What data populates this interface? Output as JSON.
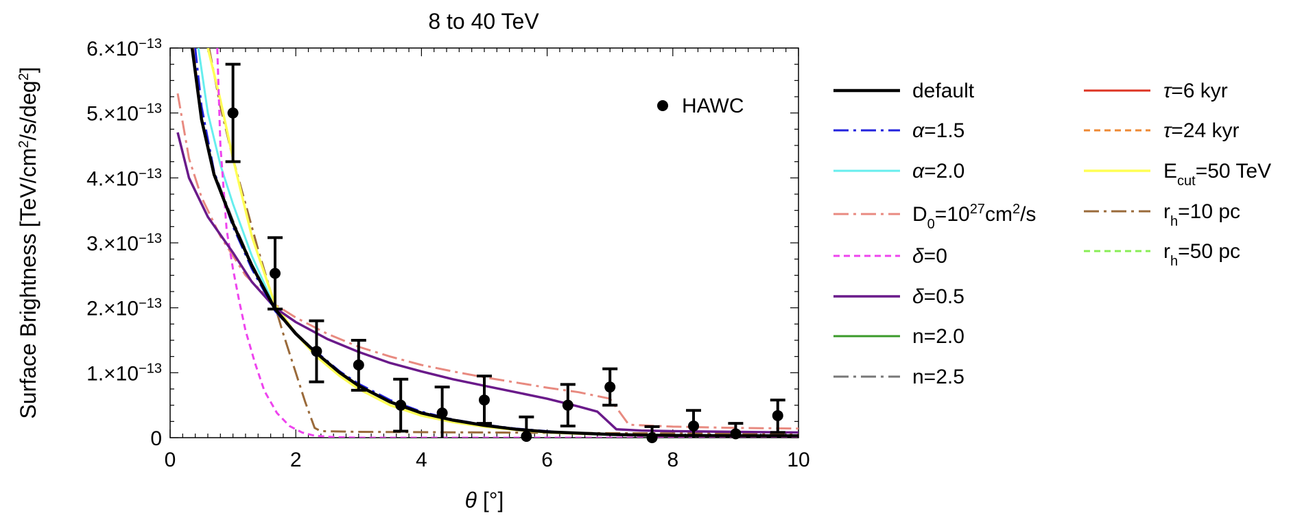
{
  "chart_data": {
    "type": "line",
    "title": "8 to 40 TeV",
    "xlabel": "θ [°]",
    "ylabel": "Surface Brightness [TeV/cm²/s/deg²]",
    "xlim": [
      0,
      10
    ],
    "ylim": [
      0,
      6e-13
    ],
    "x_ticks": [
      {
        "value": 0,
        "label": "0"
      },
      {
        "value": 2,
        "label": "2"
      },
      {
        "value": 4,
        "label": "4"
      },
      {
        "value": 6,
        "label": "6"
      },
      {
        "value": 8,
        "label": "8"
      },
      {
        "value": 10,
        "label": "10"
      }
    ],
    "y_ticks": [
      {
        "value": 0,
        "mant": "0",
        "exp": ""
      },
      {
        "value": 1e-13,
        "mant": "1.×10",
        "exp": "−13"
      },
      {
        "value": 2e-13,
        "mant": "2.×10",
        "exp": "−13"
      },
      {
        "value": 3e-13,
        "mant": "3.×10",
        "exp": "−13"
      },
      {
        "value": 4e-13,
        "mant": "4.×10",
        "exp": "−13"
      },
      {
        "value": 5e-13,
        "mant": "5.×10",
        "exp": "−13"
      },
      {
        "value": 6e-13,
        "mant": "6.×10",
        "exp": "−13"
      }
    ],
    "data_points": {
      "name": "HAWC",
      "points": [
        {
          "x": 1.0,
          "y": 5e-13,
          "lo": 4.25e-13,
          "hi": 5.75e-13
        },
        {
          "x": 1.67,
          "y": 2.53e-13,
          "lo": 1.98e-13,
          "hi": 3.08e-13
        },
        {
          "x": 2.33,
          "y": 1.33e-13,
          "lo": 8.6e-14,
          "hi": 1.8e-13
        },
        {
          "x": 3.0,
          "y": 1.12e-13,
          "lo": 7.3e-14,
          "hi": 1.5e-13
        },
        {
          "x": 3.67,
          "y": 5e-14,
          "lo": 1e-14,
          "hi": 9e-14
        },
        {
          "x": 4.33,
          "y": 3.8e-14,
          "lo": 0.0,
          "hi": 7.8e-14
        },
        {
          "x": 5.0,
          "y": 5.8e-14,
          "lo": 2.2e-14,
          "hi": 9.5e-14
        },
        {
          "x": 5.67,
          "y": 2e-15,
          "lo": 0.0,
          "hi": 3.2e-14
        },
        {
          "x": 6.33,
          "y": 5e-14,
          "lo": 1.8e-14,
          "hi": 8.2e-14
        },
        {
          "x": 7.0,
          "y": 7.8e-14,
          "lo": 5e-14,
          "hi": 1.06e-13
        },
        {
          "x": 7.67,
          "y": 0.0,
          "lo": 0.0,
          "hi": 1.7e-14
        },
        {
          "x": 8.33,
          "y": 1.8e-14,
          "lo": 0.0,
          "hi": 4.2e-14
        },
        {
          "x": 9.0,
          "y": 6e-15,
          "lo": 0.0,
          "hi": 2.2e-14
        },
        {
          "x": 9.67,
          "y": 3.4e-14,
          "lo": 8e-15,
          "hi": 5.8e-14
        }
      ]
    },
    "series": [
      {
        "name": "default",
        "color": "#000000",
        "dash": "solid",
        "width": 4.5,
        "x": [
          0.35,
          0.5,
          0.7,
          1.0,
          1.3,
          1.67,
          2.0,
          2.33,
          2.7,
          3.0,
          3.5,
          4.0,
          4.5,
          5.0,
          5.5,
          6.0,
          6.5,
          7.0,
          7.5,
          8.0,
          9.0,
          10.0
        ],
        "y": [
          6e-13,
          4.9e-13,
          4.05e-13,
          3.3e-13,
          2.65e-13,
          1.98e-13,
          1.6e-13,
          1.3e-13,
          1e-13,
          8e-14,
          5.5e-14,
          3.8e-14,
          2.7e-14,
          1.9e-14,
          1.3e-14,
          9e-15,
          7e-15,
          5e-15,
          4e-15,
          3.5e-15,
          3e-15,
          3e-15
        ]
      },
      {
        "name": "α=1.5",
        "color": "#2222dd",
        "dash": "dashdot",
        "width": 3,
        "x": [
          0.4,
          0.5,
          0.7,
          1.0,
          1.3,
          1.67,
          2.0,
          2.33,
          2.7,
          3.0,
          3.5,
          4.0,
          4.5,
          5.0,
          5.5,
          6.0,
          6.5,
          7.0,
          7.5,
          8.0,
          9.0,
          10.0
        ],
        "y": [
          6e-13,
          5.1e-13,
          4.1e-13,
          3.25e-13,
          2.6e-13,
          1.95e-13,
          1.6e-13,
          1.32e-13,
          1.02e-13,
          8.3e-14,
          5.8e-14,
          4e-14,
          2.8e-14,
          2e-14,
          1.4e-14,
          1e-14,
          7e-15,
          5e-15,
          4e-15,
          3.5e-15,
          3e-15,
          3e-15
        ]
      },
      {
        "name": "α=2.0",
        "color": "#66eeee",
        "dash": "solid",
        "width": 3,
        "x": [
          0.45,
          0.6,
          0.8,
          1.0,
          1.3,
          1.67,
          2.0,
          2.33,
          2.7,
          3.0,
          3.5,
          4.0,
          4.5,
          5.0,
          5.5,
          6.0,
          6.5,
          7.0,
          7.5,
          8.0,
          9.0,
          10.0
        ],
        "y": [
          6e-13,
          5e-13,
          4.2e-13,
          3.6e-13,
          2.8e-13,
          2e-13,
          1.6e-13,
          1.3e-13,
          1e-13,
          8e-14,
          5.5e-14,
          3.8e-14,
          2.7e-14,
          1.9e-14,
          1.3e-14,
          9e-15,
          7e-15,
          5e-15,
          4e-15,
          3.5e-15,
          3e-15,
          3e-15
        ]
      },
      {
        "name": "D₀=10²⁷cm²/s",
        "color": "#e88a80",
        "dash": "dashdot",
        "width": 3,
        "x": [
          0.12,
          0.3,
          0.5,
          0.8,
          1.2,
          1.67,
          2.0,
          2.5,
          3.0,
          3.5,
          4.0,
          4.5,
          5.0,
          5.5,
          6.0,
          6.5,
          7.0,
          7.3,
          8.0,
          9.0,
          10.0
        ],
        "y": [
          5.3e-13,
          4.3e-13,
          3.7e-13,
          3.1e-13,
          2.5e-13,
          2.05e-13,
          1.85e-13,
          1.6e-13,
          1.4e-13,
          1.25e-13,
          1.12e-13,
          1.02e-13,
          9.3e-14,
          8.5e-14,
          7.7e-14,
          7e-14,
          6e-14,
          2e-14,
          1.7e-14,
          1.5e-14,
          1.4e-14
        ]
      },
      {
        "name": "δ=0",
        "color": "#ee44ee",
        "dash": "dashed",
        "width": 3,
        "x": [
          0.75,
          0.8,
          0.9,
          1.0,
          1.1,
          1.2,
          1.35,
          1.5,
          1.7,
          1.9,
          2.1,
          2.3,
          2.6,
          3.0,
          4.0,
          6.0,
          8.0,
          10.0
        ],
        "y": [
          6e-13,
          4.5e-13,
          3.2e-13,
          2.6e-13,
          2.1e-13,
          1.65e-13,
          1.15e-13,
          7.2e-14,
          3.8e-14,
          1.8e-14,
          8e-15,
          3e-15,
          1e-15,
          0.0,
          0.0,
          0.0,
          0.0,
          0.0
        ]
      },
      {
        "name": "δ=0.5",
        "color": "#6a1a8a",
        "dash": "solid",
        "width": 3.5,
        "x": [
          0.12,
          0.3,
          0.6,
          1.0,
          1.3,
          1.67,
          2.0,
          2.5,
          3.0,
          3.5,
          4.0,
          4.5,
          5.0,
          5.5,
          6.0,
          6.5,
          6.8,
          7.1,
          7.5,
          8.0,
          9.0,
          10.0
        ],
        "y": [
          4.7e-13,
          4e-13,
          3.4e-13,
          2.85e-13,
          2.4e-13,
          2e-13,
          1.78e-13,
          1.52e-13,
          1.32e-13,
          1.15e-13,
          1.02e-13,
          9e-14,
          8e-14,
          7e-14,
          6e-14,
          4.8e-14,
          4e-14,
          1.3e-14,
          1.1e-14,
          1e-14,
          9e-15,
          8e-15
        ]
      },
      {
        "name": "n=2.0",
        "color": "#3a9a2a",
        "dash": "solid",
        "width": 2.5,
        "x": [
          0.35,
          0.5,
          0.7,
          1.0,
          1.3,
          1.67,
          2.0,
          2.33,
          2.7,
          3.0,
          3.5,
          4.0,
          4.5,
          5.0,
          5.5,
          6.0,
          6.5,
          7.0,
          8.0,
          10.0
        ],
        "y": [
          6e-13,
          4.9e-13,
          4.05e-13,
          3.3e-13,
          2.65e-13,
          1.98e-13,
          1.6e-13,
          1.3e-13,
          1e-13,
          8e-14,
          5.5e-14,
          3.8e-14,
          2.7e-14,
          1.9e-14,
          1.3e-14,
          9e-15,
          7e-15,
          5e-15,
          3.5e-15,
          3e-15
        ]
      },
      {
        "name": "n=2.5",
        "color": "#777777",
        "dash": "dashdot",
        "width": 2.5,
        "x": [
          0.38,
          0.5,
          0.7,
          1.0,
          1.3,
          1.67,
          2.0,
          2.33,
          2.7,
          3.0,
          3.5,
          4.0,
          4.5,
          5.0,
          5.5,
          6.0,
          6.5,
          7.0,
          8.0,
          10.0
        ],
        "y": [
          6e-13,
          5e-13,
          4.1e-13,
          3.35e-13,
          2.68e-13,
          2e-13,
          1.62e-13,
          1.31e-13,
          1.01e-13,
          8.1e-14,
          5.6e-14,
          3.9e-14,
          2.7e-14,
          1.9e-14,
          1.3e-14,
          9e-15,
          7e-15,
          5e-15,
          3.5e-15,
          3e-15
        ]
      },
      {
        "name": "τ=6 kyr",
        "color": "#dd3322",
        "dash": "solid",
        "width": 2.5,
        "x": [
          0.36,
          0.5,
          0.7,
          1.0,
          1.3,
          1.67,
          2.0,
          2.33,
          2.7,
          3.0,
          3.5,
          4.0,
          4.5,
          5.0,
          5.5,
          6.0,
          6.5,
          7.0,
          8.0,
          10.0
        ],
        "y": [
          6e-13,
          4.92e-13,
          4.06e-13,
          3.31e-13,
          2.66e-13,
          1.99e-13,
          1.61e-13,
          1.3e-13,
          1e-13,
          8e-14,
          5.5e-14,
          3.8e-14,
          2.7e-14,
          1.9e-14,
          1.3e-14,
          9e-15,
          7e-15,
          5e-15,
          3.5e-15,
          3e-15
        ]
      },
      {
        "name": "τ=24 kyr",
        "color": "#ee8833",
        "dash": "dashed",
        "width": 2.5,
        "x": [
          0.37,
          0.5,
          0.7,
          1.0,
          1.3,
          1.67,
          2.0,
          2.33,
          2.7,
          3.0,
          3.5,
          4.0,
          4.5,
          5.0,
          5.5,
          6.0,
          6.5,
          7.0,
          8.0,
          10.0
        ],
        "y": [
          6e-13,
          4.95e-13,
          4.08e-13,
          3.32e-13,
          2.66e-13,
          1.99e-13,
          1.61e-13,
          1.31e-13,
          1.01e-13,
          8.1e-14,
          5.6e-14,
          3.9e-14,
          2.7e-14,
          1.9e-14,
          1.3e-14,
          9e-15,
          7e-15,
          5e-15,
          3.5e-15,
          3e-15
        ]
      },
      {
        "name": "E_cut=50 TeV",
        "color": "#ffff55",
        "dash": "solid",
        "width": 3.5,
        "x": [
          0.6,
          0.8,
          1.0,
          1.3,
          1.67,
          2.0,
          2.33,
          2.7,
          3.0,
          3.5,
          4.0,
          4.5,
          5.0,
          5.5,
          6.0,
          6.5,
          7.0,
          8.0,
          10.0
        ],
        "y": [
          6e-13,
          5.2e-13,
          4.3e-13,
          3.1e-13,
          2.05e-13,
          1.6e-13,
          1.25e-13,
          9.5e-14,
          7.5e-14,
          5e-14,
          3.4e-14,
          2.4e-14,
          1.7e-14,
          1.2e-14,
          8e-15,
          6e-15,
          5e-15,
          3.5e-15,
          3e-15
        ]
      },
      {
        "name": "r_h=10 pc",
        "color": "#9a6a3a",
        "dash": "dashdot",
        "width": 3,
        "x": [
          0.62,
          0.8,
          1.0,
          1.2,
          1.4,
          1.6,
          1.8,
          2.0,
          2.15,
          2.3,
          2.4,
          3.0,
          5.0,
          7.0,
          10.0
        ],
        "y": [
          6e-13,
          5.1e-13,
          4.3e-13,
          3.6e-13,
          2.9e-13,
          2.25e-13,
          1.6e-13,
          1e-13,
          5.5e-14,
          1.5e-14,
          1e-14,
          9e-15,
          8e-15,
          7e-15,
          6e-15
        ]
      },
      {
        "name": "r_h=50 pc",
        "color": "#88ee55",
        "dash": "dashed",
        "width": 2.5,
        "x": [
          0.35,
          0.5,
          0.7,
          1.0,
          1.3,
          1.67,
          2.0,
          2.33,
          2.7,
          3.0,
          3.5,
          4.0,
          4.5,
          5.0,
          5.5,
          6.0,
          6.5,
          7.0,
          8.0,
          10.0
        ],
        "y": [
          6e-13,
          4.9e-13,
          4.04e-13,
          3.29e-13,
          2.64e-13,
          1.97e-13,
          1.59e-13,
          1.29e-13,
          9.9e-14,
          7.9e-14,
          5.4e-14,
          3.7e-14,
          2.6e-14,
          1.8e-14,
          1.2e-14,
          8.5e-15,
          6.5e-15,
          4.8e-15,
          3.4e-15,
          2.9e-15
        ]
      }
    ],
    "legend_labels": [
      {
        "key": "hawc",
        "text": "HAWC"
      },
      {
        "key": "default",
        "text": "default"
      },
      {
        "key": "alpha15",
        "greek": "α",
        "text": "=1.5"
      },
      {
        "key": "alpha20",
        "greek": "α",
        "text": "=2.0"
      },
      {
        "key": "d0",
        "base": "D",
        "sub": "0",
        "text": "=10",
        "sup": "27",
        "text2": "cm",
        "sup2": "2",
        "text3": "/s"
      },
      {
        "key": "delta0",
        "greek": "δ",
        "text": "=0"
      },
      {
        "key": "delta05",
        "greek": "δ",
        "text": "=0.5"
      },
      {
        "key": "n20",
        "text": "n=2.0"
      },
      {
        "key": "n25",
        "text": "n=2.5"
      },
      {
        "key": "tau6",
        "greek": "τ",
        "text": "=6 kyr"
      },
      {
        "key": "tau24",
        "greek": "τ",
        "text": "=24 kyr"
      },
      {
        "key": "ecut",
        "base": "E",
        "sub": "cut",
        "text": "=50 TeV"
      },
      {
        "key": "rh10",
        "base": "r",
        "sub": "h",
        "text": "=10 pc"
      },
      {
        "key": "rh50",
        "base": "r",
        "sub": "h",
        "text": "=50 pc"
      }
    ],
    "axis_title_parts": {
      "x_greek": "θ",
      "x_rest": " [°]",
      "y_a": "Surface Brightness [TeV/cm",
      "y_sup1": "2",
      "y_b": "/s/deg",
      "y_sup2": "2",
      "y_c": "]"
    }
  }
}
